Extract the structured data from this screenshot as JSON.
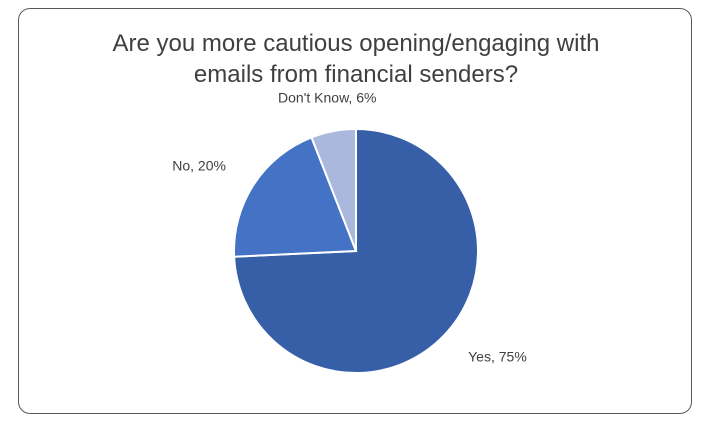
{
  "chart_data": {
    "type": "pie",
    "title": "Are you more cautious opening/engaging with emails from financial senders?",
    "categories": [
      "Yes",
      "No",
      "Don't Know"
    ],
    "values": [
      75,
      20,
      6
    ],
    "value_labels": [
      "Yes, 75%",
      "No, 20%",
      "Don't Know, 6%"
    ],
    "colors": [
      "#365fa8",
      "#4472c4",
      "#a9b8dc"
    ]
  }
}
